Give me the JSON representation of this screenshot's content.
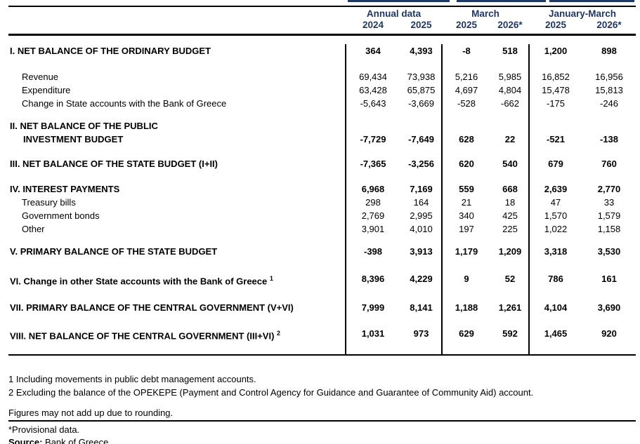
{
  "colors": {
    "header_navy": "#1F3864",
    "text": "#000000"
  },
  "header": {
    "groups": [
      {
        "label": "Annual data"
      },
      {
        "label": "March"
      },
      {
        "label": "January-March"
      }
    ],
    "years": [
      "2024",
      "2025",
      "2025",
      "2026*",
      "2025",
      "2026*"
    ]
  },
  "rows": [
    {
      "label": "I. NET BALANCE OF THE ORDINARY BUDGET",
      "values": [
        "364",
        "4,393",
        "-8",
        "518",
        "1,200",
        "898"
      ]
    },
    {
      "label": "Revenue",
      "values": [
        "69,434",
        "73,938",
        "5,216",
        "5,985",
        "16,852",
        "16,956"
      ]
    },
    {
      "label": "Expenditure",
      "values": [
        "63,428",
        "65,875",
        "4,697",
        "4,804",
        "15,478",
        "15,813"
      ]
    },
    {
      "label": "Change in State accounts with the Bank of Greece",
      "values": [
        "-5,643",
        "-3,669",
        "-528",
        "-662",
        "-175",
        "-246"
      ]
    },
    {
      "label": "II. NET BALANCE OF THE PUBLIC",
      "label2": "INVESTMENT BUDGET",
      "values": [
        "-7,729",
        "-7,649",
        "628",
        "22",
        "-521",
        "-138"
      ]
    },
    {
      "label": "III. NET BALANCE OF THE STATE BUDGET (I+II)",
      "values": [
        "-7,365",
        "-3,256",
        "620",
        "540",
        "679",
        "760"
      ]
    },
    {
      "label": "IV. INTEREST PAYMENTS",
      "values": [
        "6,968",
        "7,169",
        "559",
        "668",
        "2,639",
        "2,770"
      ]
    },
    {
      "label": "Treasury bills",
      "values": [
        "298",
        "164",
        "21",
        "18",
        "47",
        "33"
      ]
    },
    {
      "label": "Government bonds",
      "values": [
        "2,769",
        "2,995",
        "340",
        "425",
        "1,570",
        "1,579"
      ]
    },
    {
      "label": "Other",
      "values": [
        "3,901",
        "4,010",
        "197",
        "225",
        "1,022",
        "1,158"
      ]
    },
    {
      "label": "V. PRIMARY BALANCE OF THE STATE BUDGET",
      "values": [
        "-398",
        "3,913",
        "1,179",
        "1,209",
        "3,318",
        "3,530"
      ]
    },
    {
      "label": "VI. Change in other State accounts with the Bank of Greece",
      "sup": "1",
      "values": [
        "8,396",
        "4,229",
        "9",
        "52",
        "786",
        "161"
      ]
    },
    {
      "label": "VII. PRIMARY BALANCE OF THE CENTRAL GOVERNMENT (V+VI)",
      "values": [
        "7,999",
        "8,141",
        "1,188",
        "1,261",
        "4,104",
        "3,690"
      ]
    },
    {
      "label": "VIII. NET BALANCE OF THE CENTRAL GOVERNMENT (III+VI)",
      "sup": "2",
      "values": [
        "1,031",
        "973",
        "629",
        "592",
        "1,465",
        "920"
      ]
    }
  ],
  "footnotes": {
    "note1": "1 Including movements in public debt management accounts.",
    "note2": "2 Excluding the balance of the OPEKEPE (Payment and Control Agency for Guidance and Guarantee of  Community Aid) account.",
    "rounding": "Figures may not add up due to rounding.",
    "provisional": "*Provisional data.",
    "source_label": "Source:",
    "source_text": " Bank of Greece."
  }
}
